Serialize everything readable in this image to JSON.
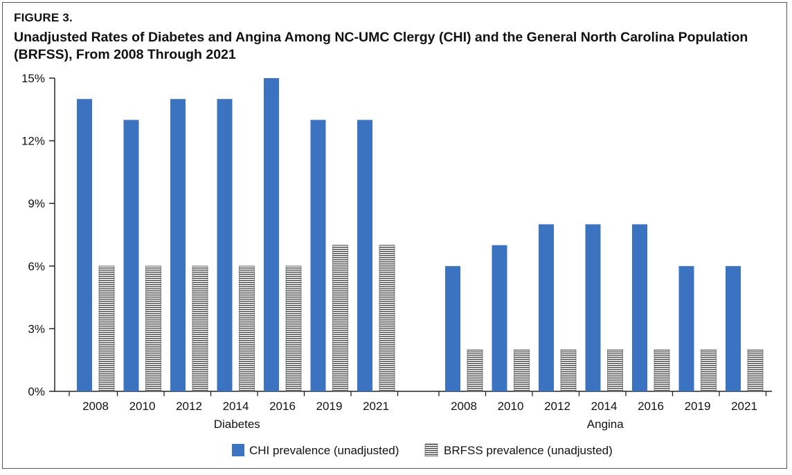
{
  "figure": {
    "label": "FIGURE 3.",
    "title": "Unadjusted Rates of Diabetes and Angina Among NC-UMC Clergy (CHI) and the General North Carolina Population (BRFSS), From 2008 Through 2021"
  },
  "colors": {
    "chi": "#3b73c0",
    "brfss": "#444444",
    "axis": "#222222"
  },
  "chart_data": {
    "type": "bar",
    "title": "Unadjusted Rates of Diabetes and Angina Among NC-UMC Clergy (CHI) and the General North Carolina Population (BRFSS), From 2008 Through 2021",
    "xlabel": "",
    "ylabel": "",
    "ylim": [
      0,
      15
    ],
    "y_ticks": [
      0,
      3,
      6,
      9,
      12,
      15
    ],
    "y_tick_labels": [
      "0%",
      "3%",
      "6%",
      "9%",
      "12%",
      "15%"
    ],
    "groups": [
      {
        "name": "Diabetes",
        "categories": [
          "2008",
          "2010",
          "2012",
          "2014",
          "2016",
          "2019",
          "2021"
        ],
        "series": [
          {
            "name": "CHI prevalence (unadjusted)",
            "values": [
              14,
              13,
              14,
              14,
              15,
              13,
              13
            ]
          },
          {
            "name": "BRFSS prevalence (unadjusted)",
            "values": [
              6,
              6,
              6,
              6,
              6,
              7,
              7
            ]
          }
        ]
      },
      {
        "name": "Angina",
        "categories": [
          "2008",
          "2010",
          "2012",
          "2014",
          "2016",
          "2019",
          "2021"
        ],
        "series": [
          {
            "name": "CHI prevalence (unadjusted)",
            "values": [
              6,
              7,
              8,
              8,
              8,
              6,
              6
            ]
          },
          {
            "name": "BRFSS prevalence (unadjusted)",
            "values": [
              2,
              2,
              2,
              2,
              2,
              2,
              2
            ]
          }
        ]
      }
    ],
    "legend": [
      "CHI prevalence (unadjusted)",
      "BRFSS prevalence (unadjusted)"
    ],
    "legend_position": "bottom-center",
    "grid": false
  }
}
